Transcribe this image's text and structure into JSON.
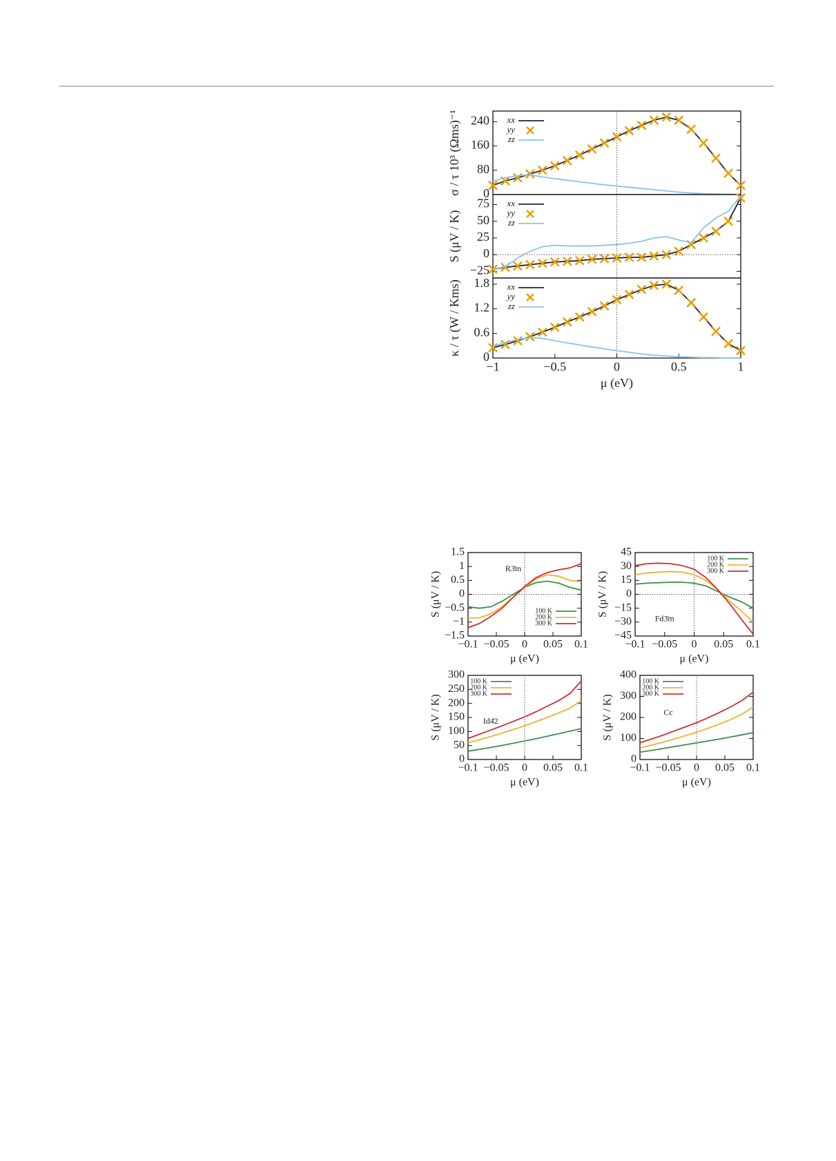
{
  "chart_data": [
    {
      "type": "line",
      "ylabel": "σ / τ 10³ (Ωms)⁻¹",
      "legend": "top-left",
      "zero_lines": true,
      "x": [
        -1,
        -0.9,
        -0.8,
        -0.7,
        -0.6,
        -0.5,
        -0.4,
        -0.3,
        -0.2,
        -0.1,
        0,
        0.1,
        0.2,
        0.3,
        0.4,
        0.5,
        0.6,
        0.7,
        0.8,
        0.9,
        1
      ],
      "xlim": [
        -1,
        1
      ],
      "ylim": [
        0,
        275
      ],
      "yticks": [
        0,
        80,
        160,
        240
      ],
      "series": [
        {
          "name": "xx",
          "color": "#1f1f3f",
          "mode": "line",
          "values": [
            30,
            45,
            55,
            68,
            80,
            95,
            112,
            130,
            150,
            170,
            190,
            210,
            228,
            245,
            255,
            245,
            215,
            170,
            120,
            70,
            30
          ]
        },
        {
          "name": "yy",
          "color": "#e69f00",
          "mode": "markers",
          "values": [
            30,
            45,
            55,
            68,
            80,
            95,
            112,
            130,
            150,
            170,
            190,
            210,
            228,
            245,
            255,
            245,
            215,
            170,
            120,
            70,
            30
          ]
        },
        {
          "name": "zz",
          "color": "#87c4e8",
          "mode": "line",
          "values": [
            45,
            55,
            62,
            65,
            58,
            52,
            47,
            42,
            37,
            32,
            28,
            24,
            20,
            16,
            12,
            8,
            5,
            3,
            2,
            1,
            0
          ]
        }
      ]
    },
    {
      "type": "line",
      "ylabel": "S (μV / K)",
      "legend": "top-left",
      "zero_lines": true,
      "x": [
        -1,
        -0.9,
        -0.8,
        -0.7,
        -0.6,
        -0.5,
        -0.4,
        -0.3,
        -0.2,
        -0.1,
        0,
        0.1,
        0.2,
        0.3,
        0.4,
        0.5,
        0.6,
        0.7,
        0.8,
        0.9,
        1
      ],
      "xlim": [
        -1,
        1
      ],
      "ylim": [
        -35,
        90
      ],
      "yticks": [
        {
          "value": -25,
          "label": "−25"
        },
        0,
        25,
        50,
        75
      ],
      "series": [
        {
          "name": "xx",
          "color": "#1f1f3f",
          "mode": "line",
          "values": [
            -22,
            -19,
            -17,
            -15,
            -13,
            -11,
            -10,
            -9,
            -7,
            -6,
            -5,
            -4,
            -4,
            -2,
            0,
            5,
            15,
            25,
            35,
            50,
            85
          ]
        },
        {
          "name": "yy",
          "color": "#e69f00",
          "mode": "markers",
          "values": [
            -22,
            -19,
            -17,
            -15,
            -13,
            -11,
            -10,
            -9,
            -7,
            -6,
            -5,
            -4,
            -4,
            -2,
            0,
            5,
            15,
            25,
            35,
            50,
            85
          ]
        },
        {
          "name": "zz",
          "color": "#87c4e8",
          "mode": "line",
          "values": [
            -22,
            -18,
            -5,
            5,
            12,
            14,
            13,
            13,
            13,
            14,
            15,
            17,
            20,
            25,
            27,
            22,
            18,
            40,
            55,
            65,
            88
          ]
        }
      ]
    },
    {
      "type": "line",
      "ylabel": "κ / τ (W / Kms)",
      "xlabel": "μ (eV)",
      "legend": "top-left",
      "zero_lines": true,
      "x": [
        -1,
        -0.9,
        -0.8,
        -0.7,
        -0.6,
        -0.5,
        -0.4,
        -0.3,
        -0.2,
        -0.1,
        0,
        0.1,
        0.2,
        0.3,
        0.4,
        0.5,
        0.6,
        0.7,
        0.8,
        0.9,
        1
      ],
      "xlim": [
        -1,
        1
      ],
      "xticks": [
        {
          "value": -1,
          "label": "−1"
        },
        {
          "value": -0.5,
          "label": "−0.5"
        },
        0,
        0.5,
        1
      ],
      "ylim": [
        0,
        1.95
      ],
      "yticks": [
        0,
        0.6,
        1.2,
        1.8
      ],
      "series": [
        {
          "name": "xx",
          "color": "#1f1f3f",
          "mode": "line",
          "values": [
            0.25,
            0.33,
            0.42,
            0.52,
            0.63,
            0.75,
            0.88,
            1.0,
            1.13,
            1.27,
            1.42,
            1.55,
            1.67,
            1.77,
            1.8,
            1.65,
            1.35,
            1.0,
            0.65,
            0.35,
            0.18
          ]
        },
        {
          "name": "yy",
          "color": "#e69f00",
          "mode": "markers",
          "values": [
            0.25,
            0.33,
            0.42,
            0.52,
            0.63,
            0.75,
            0.88,
            1.0,
            1.13,
            1.27,
            1.42,
            1.55,
            1.67,
            1.77,
            1.8,
            1.65,
            1.35,
            1.0,
            0.65,
            0.35,
            0.18
          ]
        },
        {
          "name": "zz",
          "color": "#87c4e8",
          "mode": "line",
          "values": [
            0.28,
            0.38,
            0.45,
            0.5,
            0.48,
            0.42,
            0.37,
            0.32,
            0.27,
            0.22,
            0.18,
            0.14,
            0.1,
            0.07,
            0.05,
            0.03,
            0.02,
            0.01,
            0.01,
            0,
            0
          ]
        }
      ]
    },
    {
      "type": "line",
      "ylabel": "S (μV / K)",
      "xlabel": "μ (eV)",
      "annotation": "R3̄m",
      "legend": "bottom-right",
      "zero_lines": true,
      "x": [
        -0.1,
        -0.08,
        -0.06,
        -0.04,
        -0.02,
        0,
        0.02,
        0.04,
        0.06,
        0.08,
        0.1
      ],
      "xlim": [
        -0.1,
        0.1
      ],
      "xticks": [
        {
          "value": -0.1,
          "label": "−0.1"
        },
        {
          "value": -0.05,
          "label": "−0.05"
        },
        0,
        0.05,
        0.1
      ],
      "ylim": [
        -1.5,
        1.5
      ],
      "yticks": [
        {
          "value": -1.5,
          "label": "−1.5"
        },
        {
          "value": -1,
          "label": "−1"
        },
        {
          "value": -0.5,
          "label": "−0.5"
        },
        0,
        0.5,
        1,
        1.5
      ],
      "series": [
        {
          "name": "100 K",
          "color": "#3a8f4a",
          "mode": "line",
          "values": [
            -0.45,
            -0.5,
            -0.45,
            -0.25,
            0,
            0.25,
            0.42,
            0.47,
            0.4,
            0.25,
            0.15
          ]
        },
        {
          "name": "200 K",
          "color": "#f0b030",
          "mode": "line",
          "values": [
            -0.85,
            -0.85,
            -0.7,
            -0.45,
            -0.1,
            0.25,
            0.55,
            0.7,
            0.65,
            0.5,
            0.45
          ]
        },
        {
          "name": "300 K",
          "color": "#d62b2b",
          "mode": "line",
          "values": [
            -1.2,
            -1.05,
            -0.8,
            -0.5,
            -0.1,
            0.28,
            0.6,
            0.78,
            0.88,
            0.95,
            1.1
          ]
        }
      ]
    },
    {
      "type": "line",
      "ylabel": "S (μV / K)",
      "xlabel": "μ (eV)",
      "annotation": "Fd3̄m",
      "legend": "top-right",
      "zero_lines": true,
      "x": [
        -0.1,
        -0.08,
        -0.06,
        -0.04,
        -0.02,
        0,
        0.02,
        0.04,
        0.06,
        0.08,
        0.1
      ],
      "xlim": [
        -0.1,
        0.1
      ],
      "xticks": [
        {
          "value": -0.1,
          "label": "−0.1"
        },
        {
          "value": -0.05,
          "label": "−0.05"
        },
        0,
        0.05,
        0.1
      ],
      "ylim": [
        -45,
        45
      ],
      "yticks": [
        {
          "value": -45,
          "label": "−45"
        },
        {
          "value": -30,
          "label": "−30"
        },
        {
          "value": -15,
          "label": "−15"
        },
        0,
        15,
        30,
        45
      ],
      "series": [
        {
          "name": "100 K",
          "color": "#3a8f4a",
          "mode": "line",
          "values": [
            11,
            12,
            12.5,
            13,
            13,
            12,
            9,
            3,
            -3,
            -8,
            -15
          ]
        },
        {
          "name": "200 K",
          "color": "#f0b030",
          "mode": "line",
          "values": [
            21,
            23,
            24,
            24.5,
            24,
            21,
            15,
            5,
            -7,
            -18,
            -30
          ]
        },
        {
          "name": "300 K",
          "color": "#d62b2b",
          "mode": "line",
          "values": [
            31,
            33,
            33.5,
            33,
            31,
            27,
            18,
            5,
            -10,
            -27,
            -43
          ]
        }
      ]
    },
    {
      "type": "line",
      "ylabel": "S (μV / K)",
      "xlabel": "μ (eV)",
      "annotation": "Id4̄2",
      "legend": "top-left",
      "zero_lines": true,
      "x": [
        -0.1,
        -0.08,
        -0.06,
        -0.04,
        -0.02,
        0,
        0.02,
        0.04,
        0.06,
        0.08,
        0.1
      ],
      "xlim": [
        -0.1,
        0.1
      ],
      "xticks": [
        {
          "value": -0.1,
          "label": "−0.1"
        },
        {
          "value": -0.05,
          "label": "−0.05"
        },
        0,
        0.05,
        0.1
      ],
      "ylim": [
        0,
        300
      ],
      "yticks": [
        0,
        50,
        100,
        150,
        200,
        250,
        300
      ],
      "series": [
        {
          "name": "100 K",
          "color": "#3a8f4a",
          "mode": "line",
          "values": [
            30,
            36,
            43,
            50,
            58,
            66,
            74,
            83,
            92,
            101,
            110
          ]
        },
        {
          "name": "200 K",
          "color": "#f0b030",
          "mode": "line",
          "values": [
            60,
            70,
            82,
            94,
            107,
            120,
            135,
            150,
            166,
            183,
            210
          ]
        },
        {
          "name": "300 K",
          "color": "#d62b2b",
          "mode": "line",
          "values": [
            75,
            90,
            105,
            120,
            136,
            152,
            170,
            190,
            210,
            235,
            280
          ]
        }
      ]
    },
    {
      "type": "line",
      "ylabel": "S (μV / K)",
      "xlabel": "μ (eV)",
      "annotation": "Cc",
      "legend": "top-left",
      "zero_lines": true,
      "x": [
        -0.1,
        -0.08,
        -0.06,
        -0.04,
        -0.02,
        0,
        0.02,
        0.04,
        0.06,
        0.08,
        0.1
      ],
      "xlim": [
        -0.1,
        0.1
      ],
      "xticks": [
        {
          "value": -0.1,
          "label": "−0.1"
        },
        {
          "value": -0.05,
          "label": "−0.05"
        },
        0,
        0.05,
        0.1
      ],
      "ylim": [
        0,
        400
      ],
      "yticks": [
        0,
        100,
        200,
        300,
        400
      ],
      "series": [
        {
          "name": "100 K",
          "color": "#3a8f4a",
          "mode": "line",
          "values": [
            35,
            43,
            52,
            61,
            70,
            79,
            88,
            97,
            107,
            117,
            128
          ]
        },
        {
          "name": "200 K",
          "color": "#f0b030",
          "mode": "line",
          "values": [
            55,
            68,
            82,
            97,
            113,
            130,
            148,
            168,
            190,
            215,
            250
          ]
        },
        {
          "name": "300 K",
          "color": "#d62b2b",
          "mode": "line",
          "values": [
            80,
            97,
            115,
            135,
            155,
            175,
            198,
            223,
            250,
            280,
            320
          ]
        }
      ]
    }
  ]
}
